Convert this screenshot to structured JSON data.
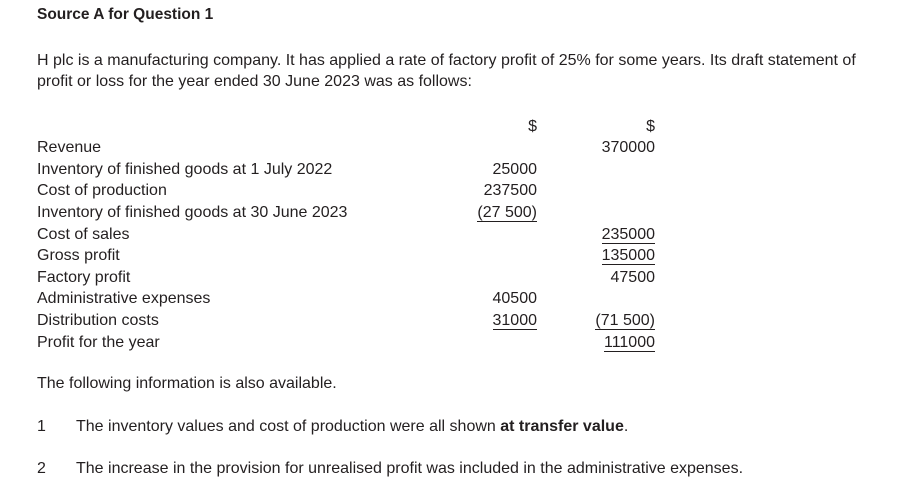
{
  "heading": "Source A for Question 1",
  "intro": "H plc is a manufacturing company. It has applied a rate of factory profit of 25% for some years. Its draft statement of profit or loss for the year ended 30 June 2023 was as follows:",
  "table": {
    "columns": [
      "$",
      "$"
    ],
    "rows": [
      [
        "Revenue",
        null,
        "370000"
      ],
      [
        "Inventory of finished goods at 1 July 2022",
        "25000",
        null
      ],
      [
        "Cost of production",
        "237500",
        null
      ],
      [
        "Inventory of finished goods at 30 June 2023",
        "(27 500)",
        null
      ],
      [
        "Cost of sales",
        null,
        "235000"
      ],
      [
        "Gross profit",
        null,
        "135000"
      ],
      [
        "Factory profit",
        null,
        "47500"
      ],
      [
        "Administrative expenses",
        "40500",
        null
      ],
      [
        "Distribution costs",
        "31000",
        "(71 500)"
      ],
      [
        "Profit for the year",
        null,
        "111000"
      ]
    ]
  },
  "note": "The following information is also available.",
  "items": [
    {
      "number": "1",
      "text": "The inventory values and cost of production were all shown ",
      "emphasis": "at transfer value",
      "end": "."
    },
    {
      "number": "2",
      "text": "The increase in the provision for unrealised profit was included in the administrative expenses."
    }
  ]
}
